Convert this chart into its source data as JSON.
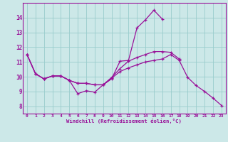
{
  "xlabel": "Windchill (Refroidissement éolien,°C)",
  "x_hours": [
    0,
    1,
    2,
    3,
    4,
    5,
    6,
    7,
    8,
    9,
    10,
    11,
    12,
    13,
    14,
    15,
    16,
    17,
    18,
    19,
    20,
    21,
    22,
    23
  ],
  "line1_y": [
    11.5,
    10.2,
    9.85,
    10.05,
    10.05,
    9.75,
    8.85,
    9.05,
    8.95,
    9.45,
    9.85,
    11.05,
    11.1,
    13.3,
    13.85,
    14.5,
    13.9,
    null,
    null,
    null,
    null,
    null,
    null,
    null
  ],
  "line2_y": [
    11.5,
    10.2,
    9.85,
    10.05,
    10.05,
    9.75,
    9.55,
    9.55,
    9.45,
    9.45,
    9.95,
    10.55,
    11.05,
    11.3,
    11.5,
    11.7,
    11.7,
    11.65,
    11.2,
    null,
    null,
    null,
    null,
    null
  ],
  "line3_y": [
    11.5,
    10.2,
    9.85,
    10.05,
    10.05,
    9.75,
    9.55,
    9.55,
    9.45,
    9.45,
    9.9,
    10.35,
    10.6,
    10.8,
    11.0,
    11.1,
    11.2,
    11.5,
    11.1,
    9.95,
    9.4,
    9.0,
    8.55,
    8.05
  ],
  "line_color": "#991199",
  "bg_color": "#cce8e8",
  "grid_color": "#99cccc",
  "ylim": [
    7.5,
    15.0
  ],
  "xlim": [
    -0.5,
    23.5
  ],
  "yticks": [
    8,
    9,
    10,
    11,
    12,
    13,
    14
  ],
  "xticks": [
    0,
    1,
    2,
    3,
    4,
    5,
    6,
    7,
    8,
    9,
    10,
    11,
    12,
    13,
    14,
    15,
    16,
    17,
    18,
    19,
    20,
    21,
    22,
    23
  ]
}
